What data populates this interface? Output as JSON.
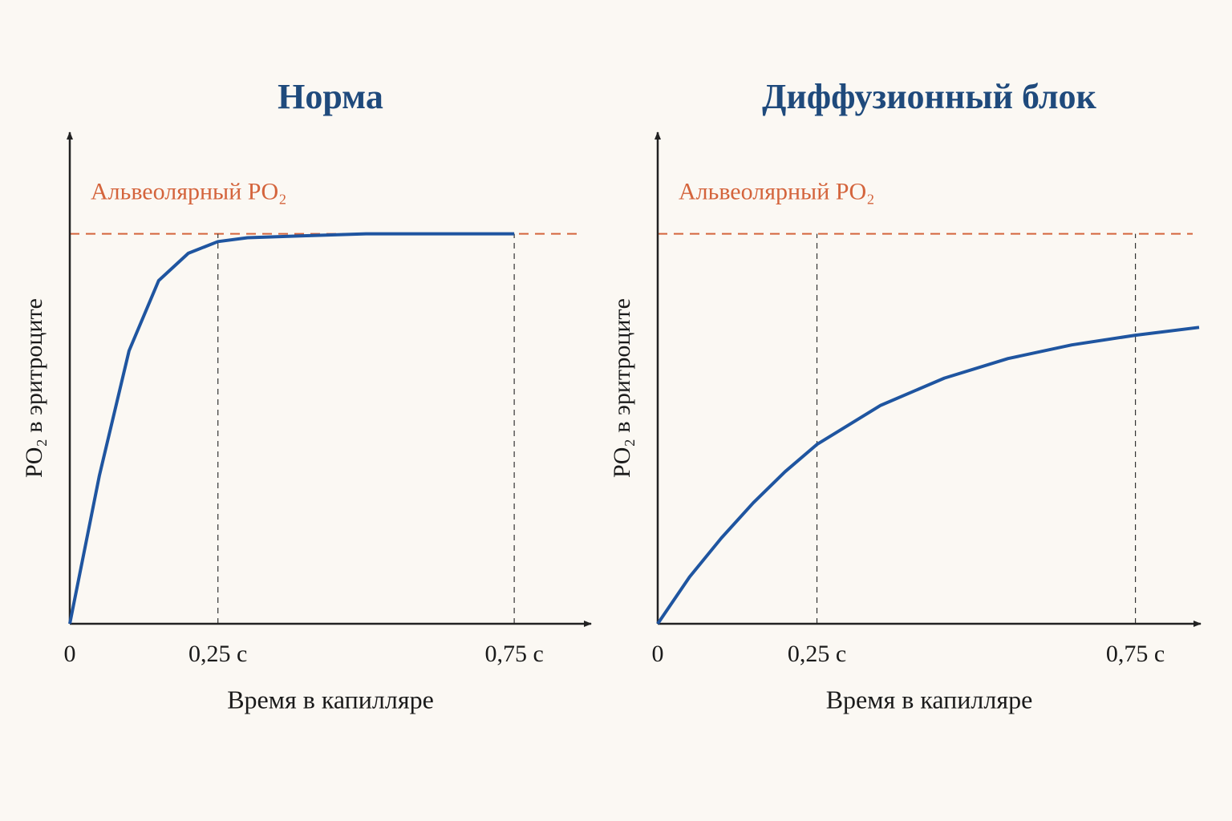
{
  "chart_data": [
    {
      "type": "line",
      "title": "Норма",
      "xlabel": "Время в капилляре",
      "ylabel": "PO₂ в эритроците",
      "x": [
        0,
        0.05,
        0.1,
        0.15,
        0.2,
        0.25,
        0.3,
        0.4,
        0.5,
        0.6,
        0.75
      ],
      "values": [
        0,
        38,
        70,
        88,
        95,
        98,
        99,
        99.5,
        100,
        100,
        100
      ],
      "color": "#1f55a0",
      "xlim": [
        0,
        0.85
      ],
      "ylim": [
        0,
        125
      ],
      "xticks": [
        0,
        {
          "value": 0.25,
          "label": "0,25 с"
        },
        {
          "value": 0.75,
          "label": "0,75 с"
        }
      ],
      "reference_line": {
        "label": "Альвеолярный PO₂",
        "value": 100,
        "color": "#d4643c"
      }
    },
    {
      "type": "line",
      "title": "Диффузионный блок",
      "xlabel": "Время в капилляре",
      "ylabel": "PO₂ в эритроците",
      "x": [
        0,
        0.05,
        0.1,
        0.15,
        0.2,
        0.25,
        0.35,
        0.45,
        0.55,
        0.65,
        0.75,
        0.85
      ],
      "values": [
        0,
        12,
        22,
        31,
        39,
        46,
        56,
        63,
        68,
        71.5,
        74,
        76
      ],
      "color": "#1f55a0",
      "xlim": [
        0,
        0.85
      ],
      "ylim": [
        0,
        125
      ],
      "xticks": [
        0,
        {
          "value": 0.25,
          "label": "0,25 с"
        },
        {
          "value": 0.75,
          "label": "0,75 с"
        }
      ],
      "reference_line": {
        "label": "Альвеолярный PO₂",
        "value": 100,
        "color": "#d4643c"
      }
    }
  ]
}
